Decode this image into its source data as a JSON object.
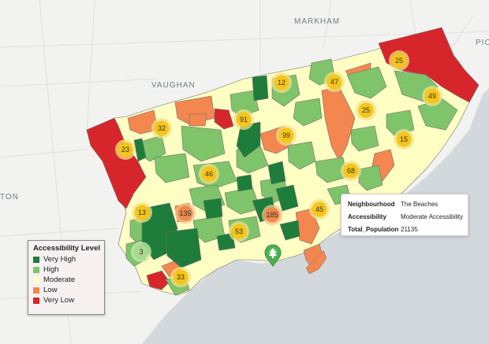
{
  "map": {
    "places": [
      {
        "id": "markham",
        "name": "MARKHAM"
      },
      {
        "id": "vaughan",
        "name": "VAUGHAN"
      },
      {
        "id": "ton",
        "name": "TON"
      },
      {
        "id": "pic",
        "name": "PIC"
      }
    ],
    "clusters": [
      {
        "id": "c12",
        "count": "12",
        "tier": "small"
      },
      {
        "id": "c47",
        "count": "47",
        "tier": "small"
      },
      {
        "id": "c25a",
        "count": "25",
        "tier": "small"
      },
      {
        "id": "c49",
        "count": "49",
        "tier": "small"
      },
      {
        "id": "c25b",
        "count": "25",
        "tier": "small"
      },
      {
        "id": "c32",
        "count": "32",
        "tier": "small"
      },
      {
        "id": "c91",
        "count": "91",
        "tier": "small"
      },
      {
        "id": "c23a",
        "count": "23",
        "tier": "small"
      },
      {
        "id": "c99",
        "count": "99",
        "tier": "small"
      },
      {
        "id": "c15",
        "count": "15",
        "tier": "small"
      },
      {
        "id": "c46",
        "count": "46",
        "tier": "small"
      },
      {
        "id": "c68",
        "count": "68",
        "tier": "small"
      },
      {
        "id": "c13",
        "count": "13",
        "tier": "small"
      },
      {
        "id": "c135",
        "count": "135",
        "tier": "large"
      },
      {
        "id": "c185",
        "count": "185",
        "tier": "large"
      },
      {
        "id": "c45",
        "count": "45",
        "tier": "small"
      },
      {
        "id": "c53",
        "count": "53",
        "tier": "small"
      },
      {
        "id": "c3",
        "count": "3",
        "tier": "tiny"
      },
      {
        "id": "c33",
        "count": "33",
        "tier": "small"
      }
    ],
    "marker": {
      "icon": "tree-icon",
      "color": "#4caf50"
    }
  },
  "legend": {
    "title": "Accessibility Level",
    "items": [
      {
        "label": "Very High",
        "color": "#1e7d3a"
      },
      {
        "label": "High",
        "color": "#7fc46a"
      },
      {
        "label": "Moderate",
        "color": "#ffffc4"
      },
      {
        "label": "Low",
        "color": "#f3874f"
      },
      {
        "label": "Very Low",
        "color": "#d7262b"
      }
    ]
  },
  "popup": {
    "rows": [
      {
        "key": "Neighbourhood",
        "value": "The Beaches"
      },
      {
        "key": "Accessibility",
        "value": "Moderate Accessibility"
      },
      {
        "key": "Total_Population",
        "value": "21135"
      }
    ]
  },
  "colors": {
    "veryHigh": "#1e7d3a",
    "high": "#7fc46a",
    "moderate": "#ffffc4",
    "low": "#f3874f",
    "veryLow": "#d7262b",
    "water": "#d3d8dc",
    "land": "#f2f2f0",
    "clusterSmallFill": "#f5c518",
    "clusterSmallHalo": "#f0e08a",
    "clusterLargeFill": "#f0884a",
    "clusterLargeHalo": "#f4c08a",
    "clusterTinyFill": "#a8d88a",
    "clusterTinyHalo": "#c8e8b0"
  }
}
